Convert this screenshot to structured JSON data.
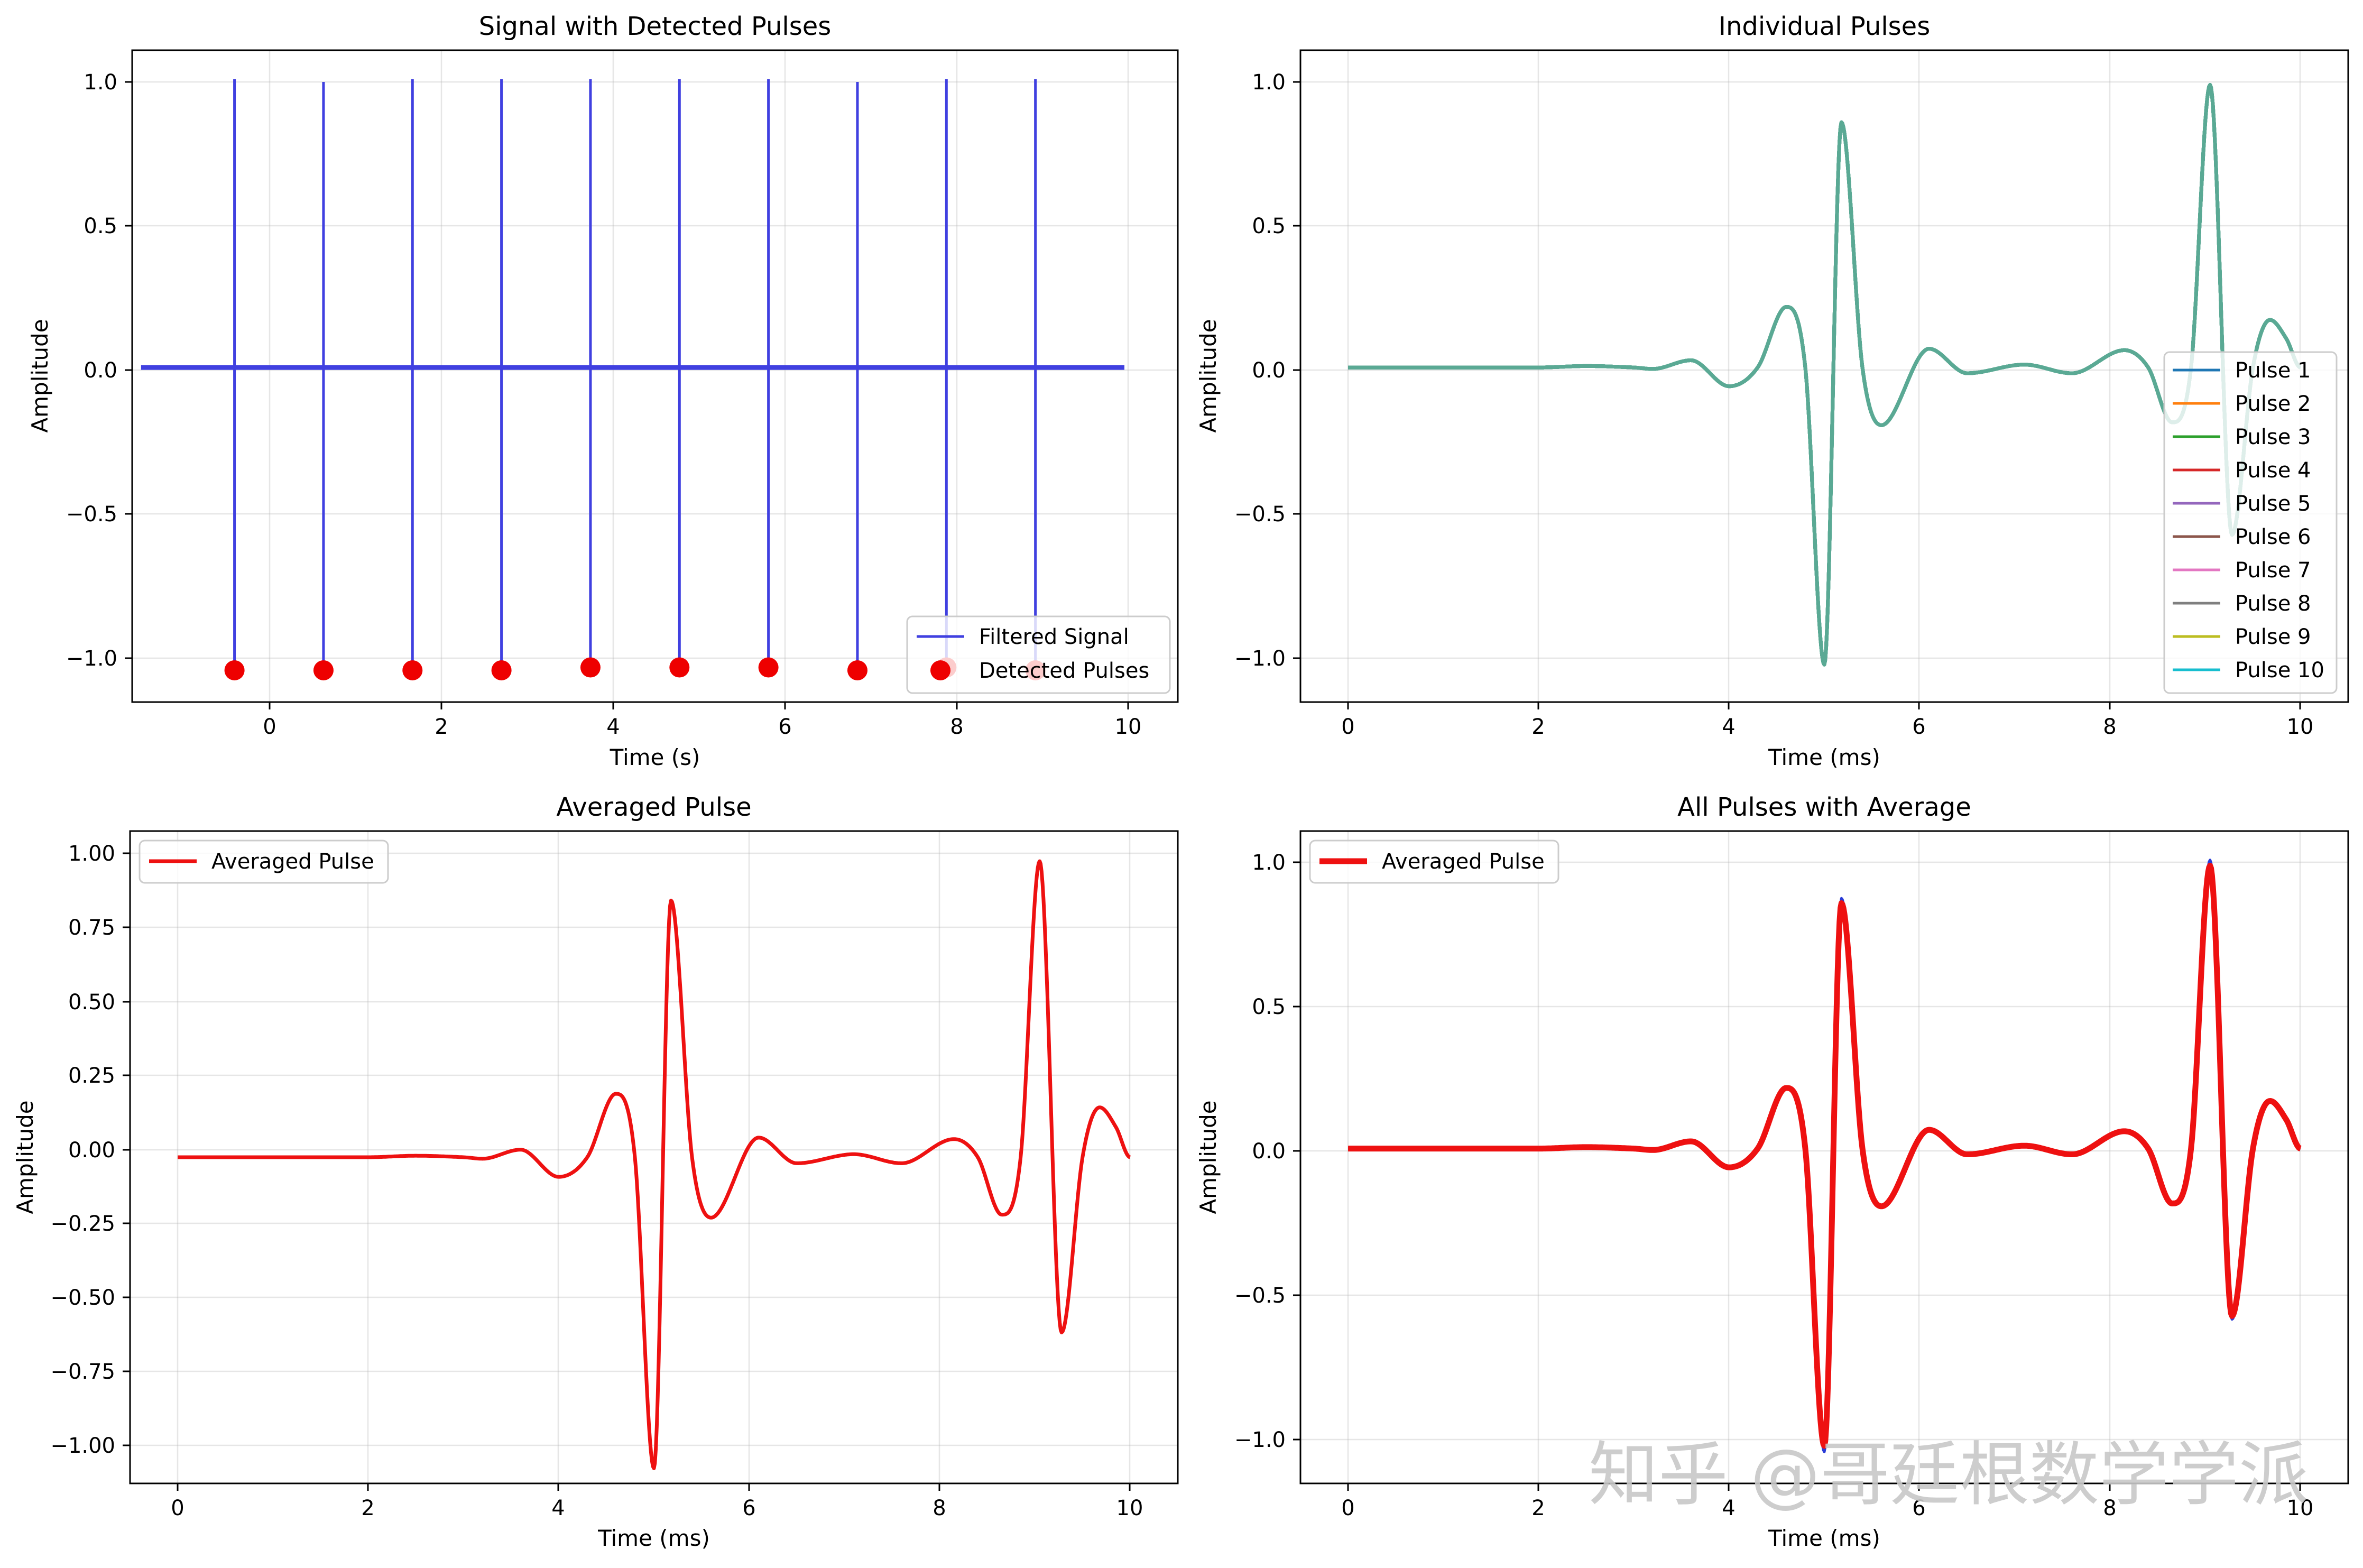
{
  "chart_data": [
    {
      "type": "line",
      "title": "Signal with Detected Pulses",
      "xlabel": "Time (s)",
      "ylabel": "Amplitude",
      "xlim": [
        -1.15,
        10.6
      ],
      "ylim": [
        -1.16,
        1.1
      ],
      "xticks": [
        "0",
        "2",
        "4",
        "6",
        "8",
        "10"
      ],
      "xtick_values": [
        0,
        2,
        4,
        6,
        8,
        10
      ],
      "yticks": [
        "1.0",
        "0.5",
        "0.0",
        "−0.5",
        "−1.0"
      ],
      "ytick_values": [
        1.0,
        0.5,
        0.0,
        -0.5,
        -1.0
      ],
      "grid": true,
      "legend_position": "bottom-right",
      "series": [
        {
          "name": "Filtered Signal",
          "kind": "spike-train",
          "color": "#4040e0",
          "baseline_x_range": [
            -1.05,
            10.0
          ],
          "baseline_y": 0.0,
          "spikes_x": [
            0,
            1,
            2,
            3,
            4,
            5,
            6,
            7,
            8,
            9
          ],
          "spikes_max": [
            1.0,
            0.99,
            1.0,
            1.0,
            1.0,
            1.0,
            1.0,
            0.99,
            1.0,
            1.0
          ],
          "spikes_min": [
            -1.03,
            -1.04,
            -1.03,
            -1.03,
            -1.02,
            -1.04,
            -1.03,
            -1.04,
            -1.03,
            -1.03
          ]
        },
        {
          "name": "Detected Pulses",
          "kind": "markers",
          "color": "#ee0000",
          "x": [
            0,
            1,
            2,
            3,
            4,
            5,
            6,
            7,
            8,
            9
          ],
          "y": [
            -1.05,
            -1.05,
            -1.05,
            -1.05,
            -1.04,
            -1.04,
            -1.04,
            -1.05,
            -1.04,
            -1.05
          ]
        }
      ]
    },
    {
      "type": "line",
      "title": "Individual Pulses",
      "xlabel": "Time (ms)",
      "ylabel": "Amplitude",
      "xlim": [
        -0.5,
        10.5
      ],
      "ylim": [
        -1.16,
        1.1
      ],
      "xticks": [
        "0",
        "2",
        "4",
        "6",
        "8",
        "10"
      ],
      "xtick_values": [
        0,
        2,
        4,
        6,
        8,
        10
      ],
      "yticks": [
        "1.0",
        "0.5",
        "0.0",
        "−0.5",
        "−1.0"
      ],
      "ytick_values": [
        1.0,
        0.5,
        0.0,
        -0.5,
        -1.0
      ],
      "grid": true,
      "legend_position": "right",
      "series": [
        {
          "name": "Pulse 1",
          "color": "#1f77b4"
        },
        {
          "name": "Pulse 2",
          "color": "#ff7f0e"
        },
        {
          "name": "Pulse 3",
          "color": "#2ca02c"
        },
        {
          "name": "Pulse 4",
          "color": "#d62728"
        },
        {
          "name": "Pulse 5",
          "color": "#9467bd"
        },
        {
          "name": "Pulse 6",
          "color": "#8c564b"
        },
        {
          "name": "Pulse 7",
          "color": "#e377c2"
        },
        {
          "name": "Pulse 8",
          "color": "#7f7f7f"
        },
        {
          "name": "Pulse 9",
          "color": "#bcbd22"
        },
        {
          "name": "Pulse 10",
          "color": "#17becf"
        }
      ],
      "drawn_color": "#5aa894"
    },
    {
      "type": "line",
      "title": "Averaged Pulse",
      "xlabel": "Time (ms)",
      "ylabel": "Amplitude",
      "xlim": [
        -0.5,
        10.5
      ],
      "ylim": [
        -1.08,
        1.08
      ],
      "xticks": [
        "0",
        "2",
        "4",
        "6",
        "8",
        "10"
      ],
      "xtick_values": [
        0,
        2,
        4,
        6,
        8,
        10
      ],
      "yticks": [
        "1.00",
        "0.75",
        "0.50",
        "0.25",
        "0.00",
        "−0.25",
        "−0.50",
        "−0.75",
        "−1.00"
      ],
      "ytick_values": [
        1.0,
        0.75,
        0.5,
        0.25,
        0.0,
        -0.25,
        -0.5,
        -0.75,
        -1.0
      ],
      "grid": true,
      "legend_position": "top-left",
      "series": [
        {
          "name": "Averaged Pulse",
          "color": "#ee1111"
        }
      ]
    },
    {
      "type": "line",
      "title": "All Pulses with Average",
      "xlabel": "Time (ms)",
      "ylabel": "Amplitude",
      "xlim": [
        -0.5,
        10.5
      ],
      "ylim": [
        -1.16,
        1.1
      ],
      "xticks": [
        "0",
        "2",
        "4",
        "6",
        "8",
        "10"
      ],
      "xtick_values": [
        0,
        2,
        4,
        6,
        8,
        10
      ],
      "yticks": [
        "1.0",
        "0.5",
        "0.0",
        "−0.5",
        "−1.0"
      ],
      "ytick_values": [
        1.0,
        0.5,
        0.0,
        -0.5,
        -1.0
      ],
      "grid": true,
      "legend_position": "top-left",
      "series": [
        {
          "name": "Averaged Pulse",
          "color": "#ee1111"
        }
      ],
      "background_color": "#2a3bd6"
    }
  ],
  "pulse_shape": {
    "x": [
      0,
      0.5,
      1,
      1.5,
      2,
      2.5,
      3,
      3.2,
      3.6,
      4.0,
      4.3,
      4.6,
      4.8,
      5.0,
      5.18,
      5.4,
      5.6,
      6.1,
      6.5,
      7.1,
      7.6,
      8.15,
      8.4,
      8.65,
      8.85,
      9.05,
      9.28,
      9.5,
      9.68,
      9.85,
      10.0
    ],
    "y": [
      0.0,
      0.0,
      0.0,
      0.0,
      0.0,
      0.005,
      0.0,
      -0.005,
      0.025,
      -0.065,
      0.0,
      0.21,
      0.0,
      -1.03,
      0.85,
      0.0,
      -0.2,
      0.065,
      -0.02,
      0.01,
      -0.02,
      0.06,
      0.0,
      -0.19,
      0.0,
      0.98,
      -0.58,
      0.0,
      0.165,
      0.1,
      0.0
    ]
  },
  "watermark": {
    "text": "知乎 @哥廷根数学学派"
  }
}
